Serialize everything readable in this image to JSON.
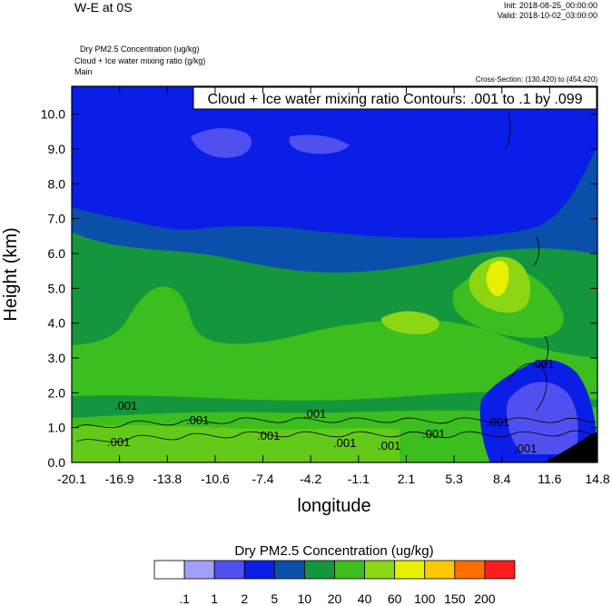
{
  "header": {
    "title": "W-E at 0S",
    "init": "Init: 2018-08-25_00:00:00",
    "valid": "Valid: 2018-10-02_03:00:00",
    "subtitles": [
      "Dry PM2.5 Concentration   (ug/kg)",
      "Cloud + Ice water mixing ratio   (g/kg)",
      "Main"
    ],
    "cross_section": "Cross-Section: (130,420) to (454,420)"
  },
  "contour_info": "Cloud + Ice water mixing ratio Contours: .001 to .1 by .099",
  "contour_labels": [
    ".001",
    ".001",
    ".001",
    ".001",
    ".001",
    ".001",
    ".001",
    ".001",
    ".001",
    ".001",
    ".001"
  ],
  "colorbar": {
    "title": "Dry PM2.5 Concentration  (ug/kg)",
    "colors": [
      "#ffffff",
      "#a0a0f8",
      "#5050f0",
      "#0a1ee6",
      "#0a50aa",
      "#14963c",
      "#3cbe1e",
      "#8cd614",
      "#e6f000",
      "#ffc800",
      "#ff6e00",
      "#ff1e1e"
    ],
    "labels": [
      ".1",
      "1",
      "2",
      "5",
      "10",
      "20",
      "40",
      "60",
      "100",
      "150",
      "200"
    ]
  },
  "chart_data": {
    "type": "heatmap",
    "title": "W-E at 0S",
    "xlabel": "longitude",
    "ylabel": "Height (km)",
    "x_ticks": [
      "-20.1",
      "-16.9",
      "-13.8",
      "-10.6",
      "-7.4",
      "-4.2",
      "-1.1",
      "2.1",
      "5.3",
      "8.4",
      "11.6",
      "14.8"
    ],
    "y_ticks": [
      "0.0",
      "1.0",
      "2.0",
      "3.0",
      "4.0",
      "5.0",
      "6.0",
      "7.0",
      "8.0",
      "9.0",
      "10.0"
    ],
    "xlim": [
      -20.1,
      14.8
    ],
    "ylim": [
      0,
      10.8
    ],
    "field": "Dry PM2.5 Concentration (ug/kg)",
    "levels": [
      0.1,
      1,
      2,
      5,
      10,
      20,
      40,
      60,
      100,
      150,
      200
    ],
    "regions": [
      {
        "x_range": [
          -20.1,
          14.8
        ],
        "height_range": [
          0,
          1.5
        ],
        "band": "20-40"
      },
      {
        "x_range": [
          -20.1,
          14.8
        ],
        "height_range": [
          1.5,
          6.0
        ],
        "band": "10-20"
      },
      {
        "x_range": [
          -20.1,
          14.8
        ],
        "height_range": [
          6.0,
          10.8
        ],
        "band": "5-10"
      },
      {
        "x_range": [
          6.5,
          8.5
        ],
        "height_range": [
          4.5,
          5.5
        ],
        "band": "100-150"
      }
    ]
  }
}
